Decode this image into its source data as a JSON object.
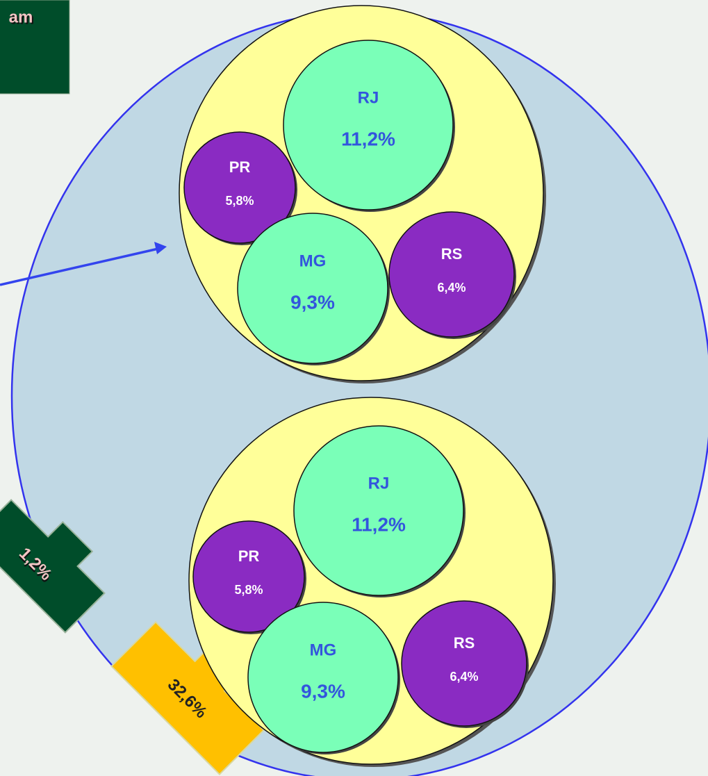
{
  "header": {
    "title": "am"
  },
  "groups": [
    {
      "nodes": [
        {
          "label": "RJ",
          "value": "11,2%"
        },
        {
          "label": "PR",
          "value": "5,8%"
        },
        {
          "label": "MG",
          "value": "9,3%"
        },
        {
          "label": "RS",
          "value": "6,4%"
        }
      ]
    },
    {
      "nodes": [
        {
          "label": "RJ",
          "value": "11,2%"
        },
        {
          "label": "PR",
          "value": "5,8%"
        },
        {
          "label": "MG",
          "value": "9,3%"
        },
        {
          "label": "RS",
          "value": "6,4%"
        }
      ]
    }
  ],
  "arrows": [
    {
      "label": "1,2%"
    },
    {
      "label": "32,6%"
    }
  ]
}
